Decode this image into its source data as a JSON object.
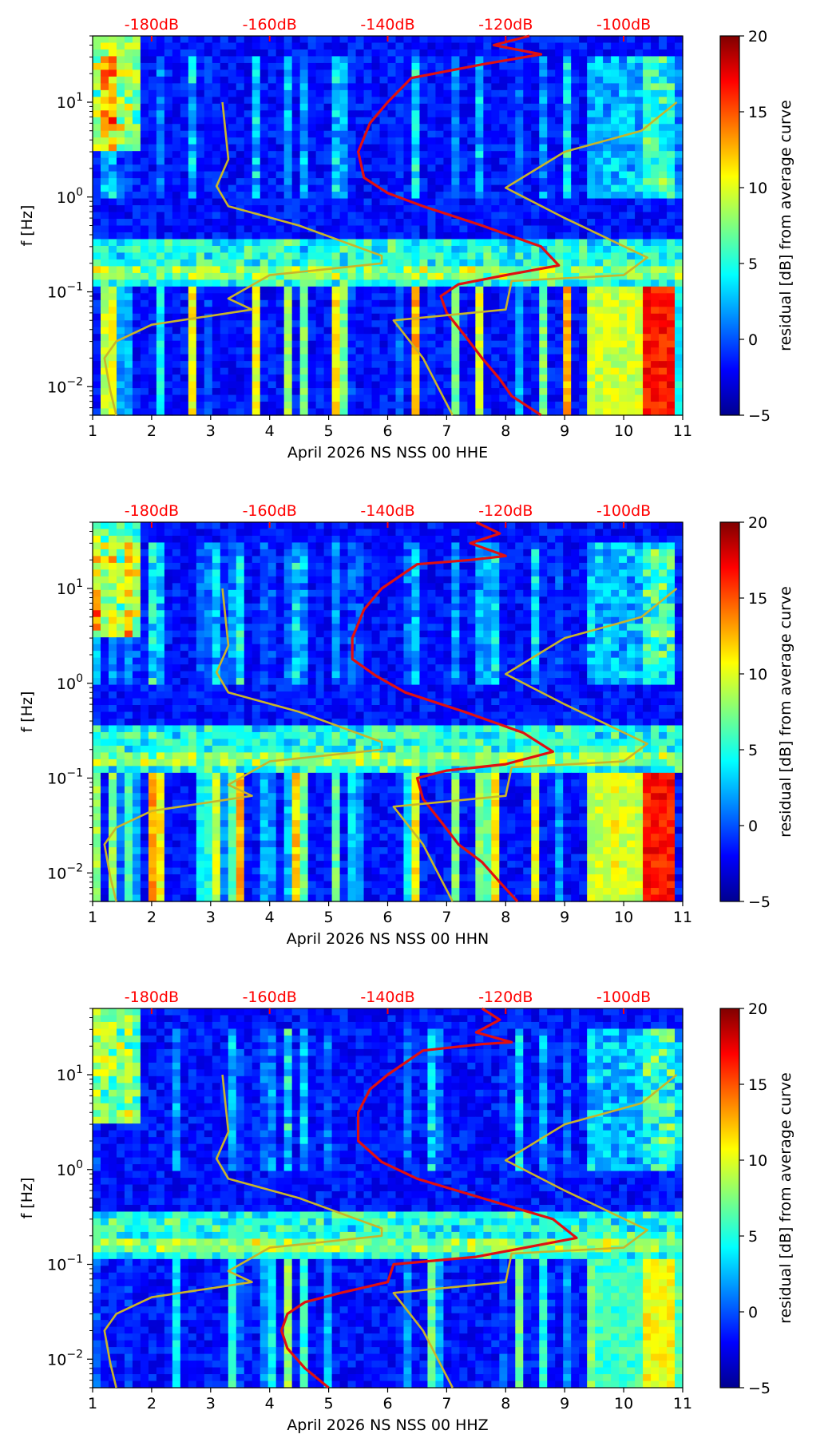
{
  "chart_data": [
    {
      "type": "heatmap",
      "title": "",
      "xlabel": "April 2026 NS NSS 00 HHE",
      "ylabel": "f [Hz]",
      "x_ticks": [
        "1",
        "2",
        "3",
        "4",
        "5",
        "6",
        "7",
        "8",
        "9",
        "10",
        "11"
      ],
      "xlim": [
        1,
        11
      ],
      "ylim": [
        0.005,
        50
      ],
      "y_ticks": [
        {
          "base": "10",
          "exp": "−2",
          "value": 0.01
        },
        {
          "base": "10",
          "exp": "−1",
          "value": 0.1
        },
        {
          "base": "10",
          "exp": "0",
          "value": 1
        },
        {
          "base": "10",
          "exp": "1",
          "value": 10
        }
      ],
      "top_db_labels": [
        {
          "label": "-180dB",
          "x": 2
        },
        {
          "label": "-160dB",
          "x": 4
        },
        {
          "label": "-140dB",
          "x": 6
        },
        {
          "label": "-120dB",
          "x": 8
        },
        {
          "label": "-100dB",
          "x": 10
        }
      ],
      "colorbar": {
        "label": "residual [dB] from average curve",
        "min": -5,
        "max": 20,
        "ticks": [
          "−5",
          "0",
          "5",
          "10",
          "15",
          "20"
        ]
      },
      "series": [
        {
          "name": "average PSD curve",
          "color": "#e01010",
          "points": [
            [
              8.6,
              0.005
            ],
            [
              8.1,
              0.008
            ],
            [
              7.9,
              0.012
            ],
            [
              7.6,
              0.02
            ],
            [
              7.3,
              0.035
            ],
            [
              7.0,
              0.06
            ],
            [
              6.9,
              0.09
            ],
            [
              7.2,
              0.12
            ],
            [
              8.0,
              0.15
            ],
            [
              8.9,
              0.19
            ],
            [
              8.6,
              0.3
            ],
            [
              7.6,
              0.5
            ],
            [
              6.6,
              0.8
            ],
            [
              6.0,
              1.1
            ],
            [
              5.6,
              1.6
            ],
            [
              5.5,
              3
            ],
            [
              5.7,
              6
            ],
            [
              6.0,
              10
            ],
            [
              6.4,
              18
            ],
            [
              7.6,
              25
            ],
            [
              8.6,
              32
            ],
            [
              7.8,
              40
            ],
            [
              8.4,
              50
            ]
          ]
        },
        {
          "name": "noise model curve",
          "color": "#c9b52a",
          "points": [
            [
              1.4,
              0.005
            ],
            [
              1.3,
              0.009
            ],
            [
              1.2,
              0.02
            ],
            [
              1.4,
              0.03
            ],
            [
              2.0,
              0.045
            ],
            [
              3.7,
              0.065
            ],
            [
              3.3,
              0.085
            ],
            [
              4.0,
              0.15
            ],
            [
              5.9,
              0.2
            ],
            [
              5.9,
              0.24
            ],
            [
              4.5,
              0.5
            ],
            [
              3.3,
              0.8
            ],
            [
              3.1,
              1.3
            ],
            [
              3.3,
              2.5
            ],
            [
              3.2,
              10
            ]
          ]
        },
        {
          "name": "high noise model curve",
          "color": "#c9b52a",
          "points": [
            [
              7.1,
              0.005
            ],
            [
              6.6,
              0.02
            ],
            [
              6.1,
              0.05
            ],
            [
              8.0,
              0.065
            ],
            [
              8.1,
              0.13
            ],
            [
              10.0,
              0.15
            ],
            [
              10.4,
              0.23
            ],
            [
              9.0,
              0.6
            ],
            [
              8.0,
              1.25
            ],
            [
              9.0,
              3
            ],
            [
              10.3,
              5
            ],
            [
              10.9,
              10
            ]
          ]
        }
      ]
    },
    {
      "type": "heatmap",
      "title": "",
      "xlabel": "April 2026 NS NSS 00 HHN",
      "ylabel": "f [Hz]",
      "x_ticks": [
        "1",
        "2",
        "3",
        "4",
        "5",
        "6",
        "7",
        "8",
        "9",
        "10",
        "11"
      ],
      "xlim": [
        1,
        11
      ],
      "ylim": [
        0.005,
        50
      ],
      "y_ticks": [
        {
          "base": "10",
          "exp": "−2",
          "value": 0.01
        },
        {
          "base": "10",
          "exp": "−1",
          "value": 0.1
        },
        {
          "base": "10",
          "exp": "0",
          "value": 1
        },
        {
          "base": "10",
          "exp": "1",
          "value": 10
        }
      ],
      "top_db_labels": [
        {
          "label": "-180dB",
          "x": 2
        },
        {
          "label": "-160dB",
          "x": 4
        },
        {
          "label": "-140dB",
          "x": 6
        },
        {
          "label": "-120dB",
          "x": 8
        },
        {
          "label": "-100dB",
          "x": 10
        }
      ],
      "colorbar": {
        "label": "residual [dB] from average curve",
        "min": -5,
        "max": 20,
        "ticks": [
          "−5",
          "0",
          "5",
          "10",
          "15",
          "20"
        ]
      },
      "series": [
        {
          "name": "average PSD curve",
          "color": "#e01010",
          "points": [
            [
              8.2,
              0.005
            ],
            [
              7.9,
              0.008
            ],
            [
              7.6,
              0.013
            ],
            [
              7.2,
              0.02
            ],
            [
              6.9,
              0.035
            ],
            [
              6.6,
              0.06
            ],
            [
              6.5,
              0.1
            ],
            [
              7.0,
              0.12
            ],
            [
              8.0,
              0.14
            ],
            [
              8.8,
              0.19
            ],
            [
              8.3,
              0.3
            ],
            [
              7.3,
              0.5
            ],
            [
              6.3,
              0.8
            ],
            [
              5.8,
              1.2
            ],
            [
              5.4,
              1.8
            ],
            [
              5.4,
              3
            ],
            [
              5.6,
              6
            ],
            [
              5.9,
              10
            ],
            [
              6.5,
              18
            ],
            [
              7.4,
              20
            ],
            [
              8.0,
              22
            ],
            [
              7.4,
              30
            ],
            [
              7.9,
              38
            ],
            [
              7.5,
              50
            ]
          ]
        },
        {
          "name": "noise model curve",
          "color": "#c9b52a",
          "points": [
            [
              1.4,
              0.005
            ],
            [
              1.3,
              0.009
            ],
            [
              1.2,
              0.02
            ],
            [
              1.4,
              0.03
            ],
            [
              2.0,
              0.045
            ],
            [
              3.7,
              0.065
            ],
            [
              3.3,
              0.085
            ],
            [
              4.0,
              0.15
            ],
            [
              5.9,
              0.2
            ],
            [
              5.9,
              0.24
            ],
            [
              4.5,
              0.5
            ],
            [
              3.3,
              0.8
            ],
            [
              3.1,
              1.3
            ],
            [
              3.3,
              2.5
            ],
            [
              3.2,
              10
            ]
          ]
        },
        {
          "name": "high noise model curve",
          "color": "#c9b52a",
          "points": [
            [
              7.1,
              0.005
            ],
            [
              6.6,
              0.02
            ],
            [
              6.1,
              0.05
            ],
            [
              8.0,
              0.065
            ],
            [
              8.1,
              0.13
            ],
            [
              10.0,
              0.15
            ],
            [
              10.4,
              0.23
            ],
            [
              9.0,
              0.6
            ],
            [
              8.0,
              1.25
            ],
            [
              9.0,
              3
            ],
            [
              10.3,
              5
            ],
            [
              10.9,
              10
            ]
          ]
        }
      ]
    },
    {
      "type": "heatmap",
      "title": "",
      "xlabel": "April 2026 NS NSS 00 HHZ",
      "ylabel": "f [Hz]",
      "x_ticks": [
        "1",
        "2",
        "3",
        "4",
        "5",
        "6",
        "7",
        "8",
        "9",
        "10",
        "11"
      ],
      "xlim": [
        1,
        11
      ],
      "ylim": [
        0.005,
        50
      ],
      "y_ticks": [
        {
          "base": "10",
          "exp": "−2",
          "value": 0.01
        },
        {
          "base": "10",
          "exp": "−1",
          "value": 0.1
        },
        {
          "base": "10",
          "exp": "0",
          "value": 1
        },
        {
          "base": "10",
          "exp": "1",
          "value": 10
        }
      ],
      "top_db_labels": [
        {
          "label": "-180dB",
          "x": 2
        },
        {
          "label": "-160dB",
          "x": 4
        },
        {
          "label": "-140dB",
          "x": 6
        },
        {
          "label": "-120dB",
          "x": 8
        },
        {
          "label": "-100dB",
          "x": 10
        }
      ],
      "colorbar": {
        "label": "residual [dB] from average curve",
        "min": -5,
        "max": 20,
        "ticks": [
          "−5",
          "0",
          "5",
          "10",
          "15",
          "20"
        ]
      },
      "series": [
        {
          "name": "average PSD curve",
          "color": "#e01010",
          "points": [
            [
              5.0,
              0.005
            ],
            [
              4.6,
              0.008
            ],
            [
              4.3,
              0.013
            ],
            [
              4.2,
              0.02
            ],
            [
              4.3,
              0.03
            ],
            [
              4.6,
              0.04
            ],
            [
              5.2,
              0.05
            ],
            [
              6.0,
              0.065
            ],
            [
              6.1,
              0.1
            ],
            [
              7.5,
              0.12
            ],
            [
              9.2,
              0.19
            ],
            [
              8.8,
              0.3
            ],
            [
              7.6,
              0.5
            ],
            [
              6.5,
              0.8
            ],
            [
              5.9,
              1.2
            ],
            [
              5.5,
              2
            ],
            [
              5.5,
              4
            ],
            [
              5.7,
              7
            ],
            [
              6.0,
              10
            ],
            [
              6.6,
              18
            ],
            [
              7.6,
              21
            ],
            [
              8.1,
              22
            ],
            [
              7.5,
              28
            ],
            [
              7.9,
              38
            ],
            [
              7.6,
              50
            ]
          ]
        },
        {
          "name": "noise model curve",
          "color": "#c9b52a",
          "points": [
            [
              1.4,
              0.005
            ],
            [
              1.3,
              0.009
            ],
            [
              1.2,
              0.02
            ],
            [
              1.4,
              0.03
            ],
            [
              2.0,
              0.045
            ],
            [
              3.7,
              0.065
            ],
            [
              3.3,
              0.085
            ],
            [
              4.0,
              0.15
            ],
            [
              5.9,
              0.2
            ],
            [
              5.9,
              0.24
            ],
            [
              4.5,
              0.5
            ],
            [
              3.3,
              0.8
            ],
            [
              3.1,
              1.3
            ],
            [
              3.3,
              2.5
            ],
            [
              3.2,
              10
            ]
          ]
        },
        {
          "name": "high noise model curve",
          "color": "#c9b52a",
          "points": [
            [
              7.1,
              0.005
            ],
            [
              6.6,
              0.02
            ],
            [
              6.1,
              0.05
            ],
            [
              8.0,
              0.065
            ],
            [
              8.1,
              0.13
            ],
            [
              10.0,
              0.15
            ],
            [
              10.4,
              0.23
            ],
            [
              9.0,
              0.6
            ],
            [
              8.0,
              1.25
            ],
            [
              9.0,
              3
            ],
            [
              10.3,
              5
            ],
            [
              10.9,
              10
            ]
          ]
        }
      ]
    }
  ]
}
